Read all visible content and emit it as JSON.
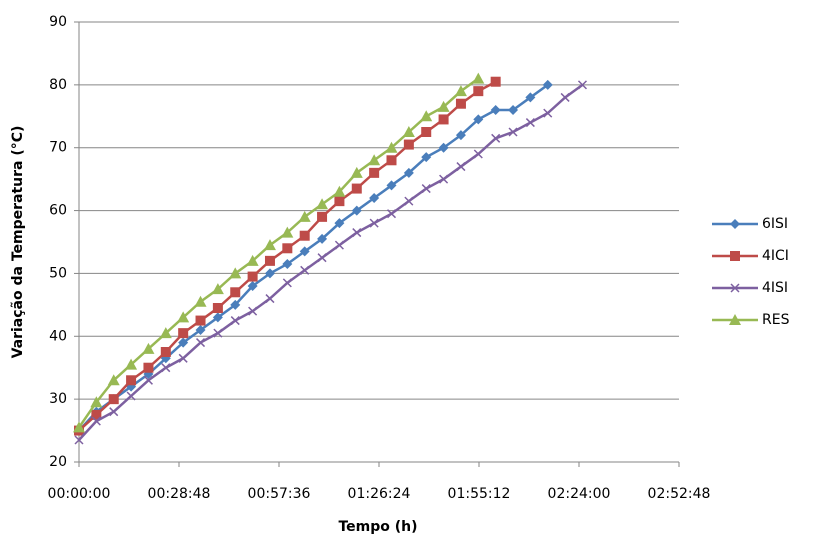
{
  "chart_data": {
    "type": "line",
    "x_label": "Tempo (h)",
    "y_label": "Variação da Temperatura (°C)",
    "x": [
      0,
      5,
      10,
      15,
      20,
      25,
      30,
      35,
      40,
      45,
      50,
      55,
      60,
      65,
      70,
      75,
      80,
      85,
      90,
      95,
      100,
      105,
      110,
      115,
      120,
      125,
      130,
      135,
      140,
      145
    ],
    "series": [
      {
        "name": "6ISI",
        "color": "#4a7ebb",
        "marker": "diamond",
        "values": [
          25,
          28,
          30,
          32,
          34,
          36.5,
          39,
          41,
          43,
          45,
          48,
          50,
          51.5,
          53.5,
          55.5,
          58,
          60,
          62,
          64,
          66,
          68.5,
          70,
          72,
          74.5,
          76,
          76,
          78,
          80,
          null,
          null
        ]
      },
      {
        "name": "4ICI",
        "color": "#be4b48",
        "marker": "square",
        "values": [
          25,
          27.5,
          30,
          33,
          35,
          37.5,
          40.5,
          42.5,
          44.5,
          47,
          49.5,
          52,
          54,
          56,
          59,
          61.5,
          63.5,
          66,
          68,
          70.5,
          72.5,
          74.5,
          77,
          79,
          80.5,
          null,
          null,
          null,
          null,
          null
        ]
      },
      {
        "name": "4ISI",
        "color": "#7d60a0",
        "marker": "x",
        "values": [
          23.5,
          26.5,
          28,
          30.5,
          33,
          35,
          36.5,
          39,
          40.5,
          42.5,
          44,
          46,
          48.5,
          50.5,
          52.5,
          54.5,
          56.5,
          58,
          59.5,
          61.5,
          63.5,
          65,
          67,
          69,
          71.5,
          72.5,
          74,
          75.5,
          78,
          80
        ]
      },
      {
        "name": "RES",
        "color": "#98b954",
        "marker": "triangle",
        "values": [
          25.5,
          29.5,
          33,
          35.5,
          38,
          40.5,
          43,
          45.5,
          47.5,
          50,
          52,
          54.5,
          56.5,
          59,
          61,
          63,
          66,
          68,
          70,
          72.5,
          75,
          76.5,
          79,
          81,
          null,
          null,
          null,
          null,
          null,
          null
        ]
      }
    ],
    "xlim": [
      0,
      172.8
    ],
    "xticks": [
      {
        "value": 0,
        "label": "00:00:00"
      },
      {
        "value": 28.8,
        "label": "00:28:48"
      },
      {
        "value": 57.6,
        "label": "00:57:36"
      },
      {
        "value": 86.4,
        "label": "01:26:24"
      },
      {
        "value": 115.2,
        "label": "01:55:12"
      },
      {
        "value": 144,
        "label": "02:24:00"
      },
      {
        "value": 172.8,
        "label": "02:52:48"
      }
    ],
    "ylim": [
      20,
      90
    ],
    "yticks": [
      20,
      30,
      40,
      50,
      60,
      70,
      80,
      90
    ],
    "grid": true,
    "legend": "right"
  }
}
